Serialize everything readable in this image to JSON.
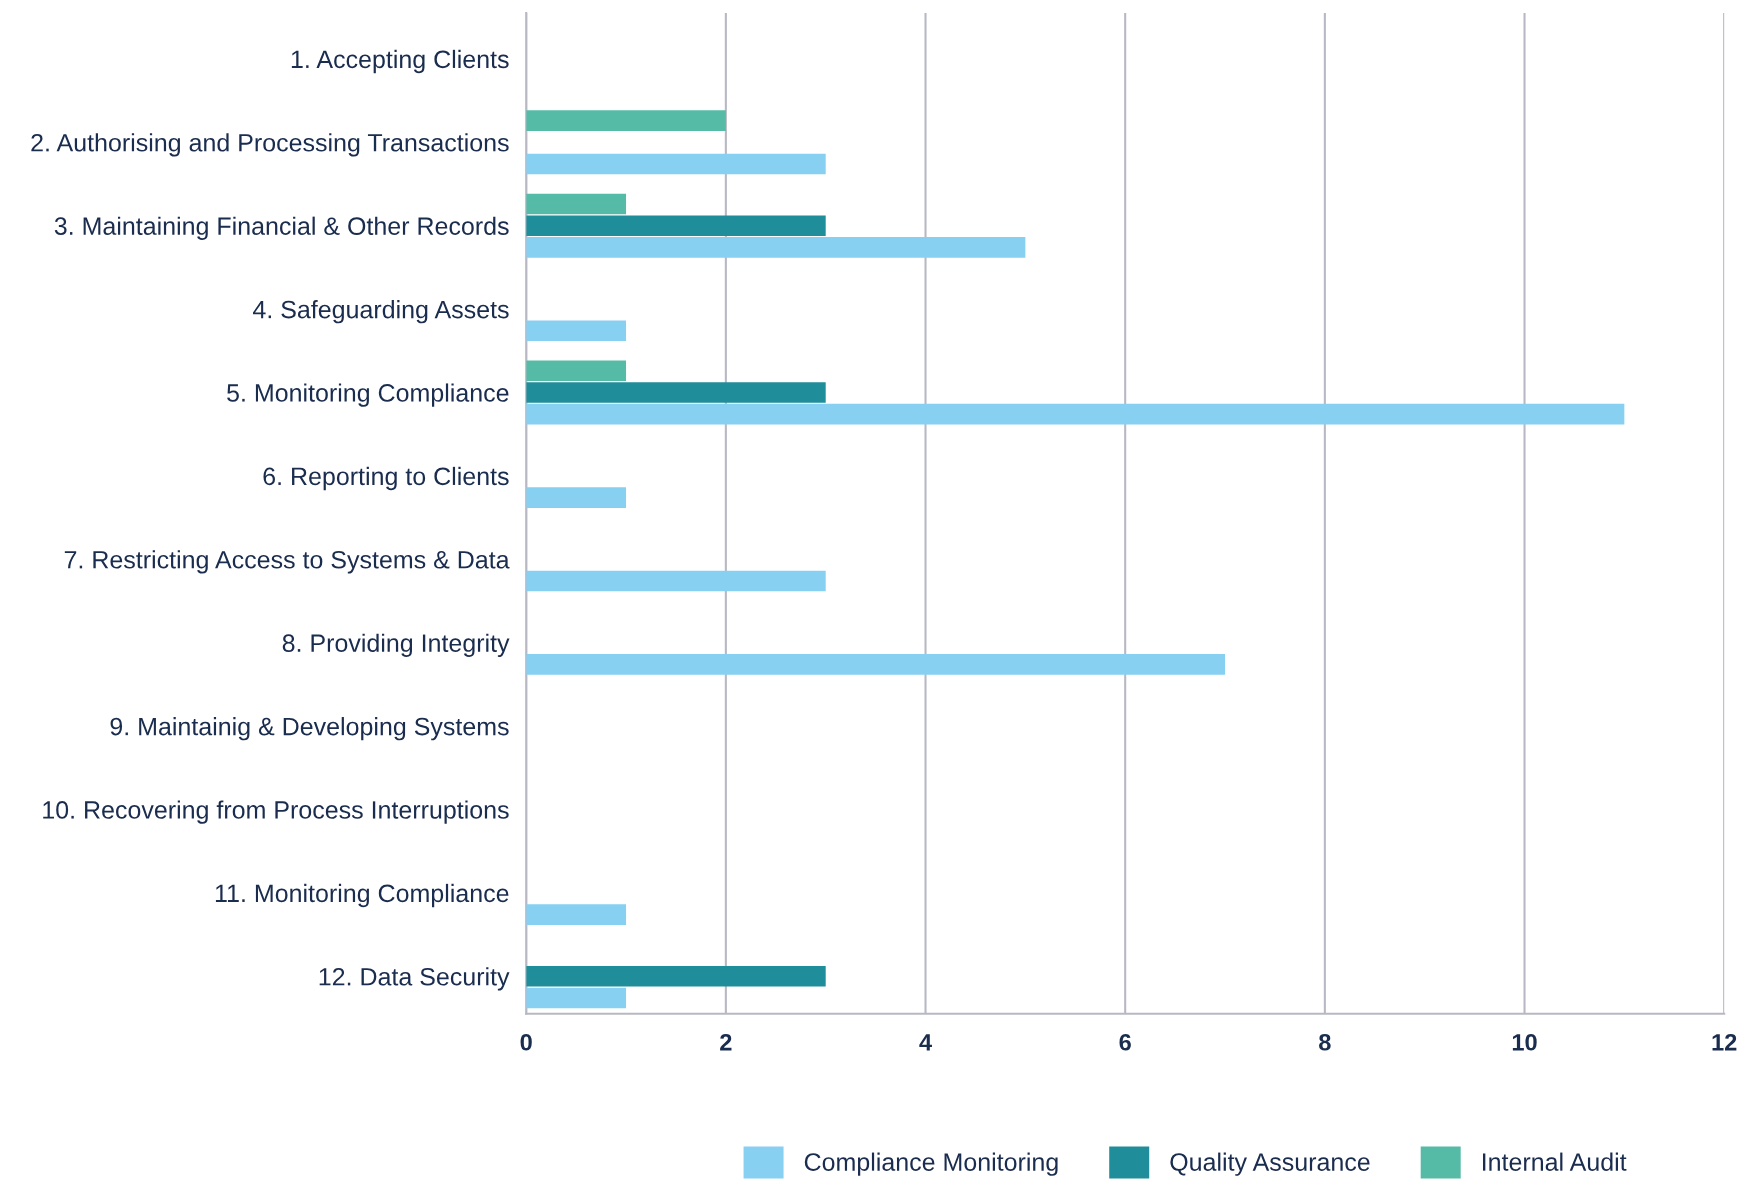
{
  "chart_data": {
    "type": "bar",
    "orientation": "horizontal",
    "categories": [
      "1. Accepting Clients",
      "2. Authorising and Processing Transactions",
      "3. Maintaining Financial & Other Records",
      "4. Safeguarding Assets",
      "5. Monitoring Compliance",
      "6. Reporting to Clients",
      "7. Restricting Access to Systems & Data",
      "8. Providing Integrity",
      "9. Maintainig & Developing Systems",
      "10. Recovering from Process Interruptions",
      "11. Monitoring Compliance",
      "12. Data Security"
    ],
    "series": [
      {
        "name": "Compliance Monitoring",
        "color": "#87d0f2",
        "values": [
          0,
          3,
          5,
          1,
          11,
          1,
          3,
          7,
          0,
          0,
          1,
          1
        ]
      },
      {
        "name": "Quality Assurance",
        "color": "#1f8e9a",
        "values": [
          0,
          0,
          3,
          0,
          3,
          0,
          0,
          0,
          0,
          0,
          0,
          3
        ]
      },
      {
        "name": "Internal Audit",
        "color": "#55bba6",
        "values": [
          0,
          2,
          1,
          0,
          1,
          0,
          0,
          0,
          0,
          0,
          0,
          0
        ]
      }
    ],
    "xlim": [
      0,
      12
    ],
    "xticks": [
      0,
      2,
      4,
      6,
      8,
      10,
      12
    ],
    "grid": "x",
    "legend": "bottom"
  }
}
